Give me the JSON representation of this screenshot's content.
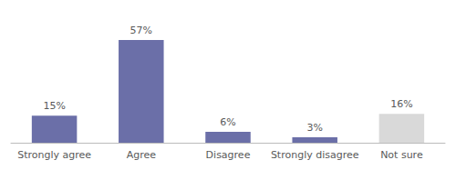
{
  "chart_data": {
    "type": "bar",
    "categories": [
      "Strongly agree",
      "Agree",
      "Disagree",
      "Strongly disagree",
      "Not sure"
    ],
    "values": [
      15,
      57,
      6,
      3,
      16
    ],
    "value_labels": [
      "15%",
      "57%",
      "6%",
      "3%",
      "16%"
    ],
    "colors": [
      "#6b6fa8",
      "#6b6fa8",
      "#6b6fa8",
      "#6b6fa8",
      "#d9d9d9"
    ],
    "ylim": [
      0,
      65
    ],
    "grid": false,
    "data_labels": true,
    "tick_labels": "x"
  }
}
